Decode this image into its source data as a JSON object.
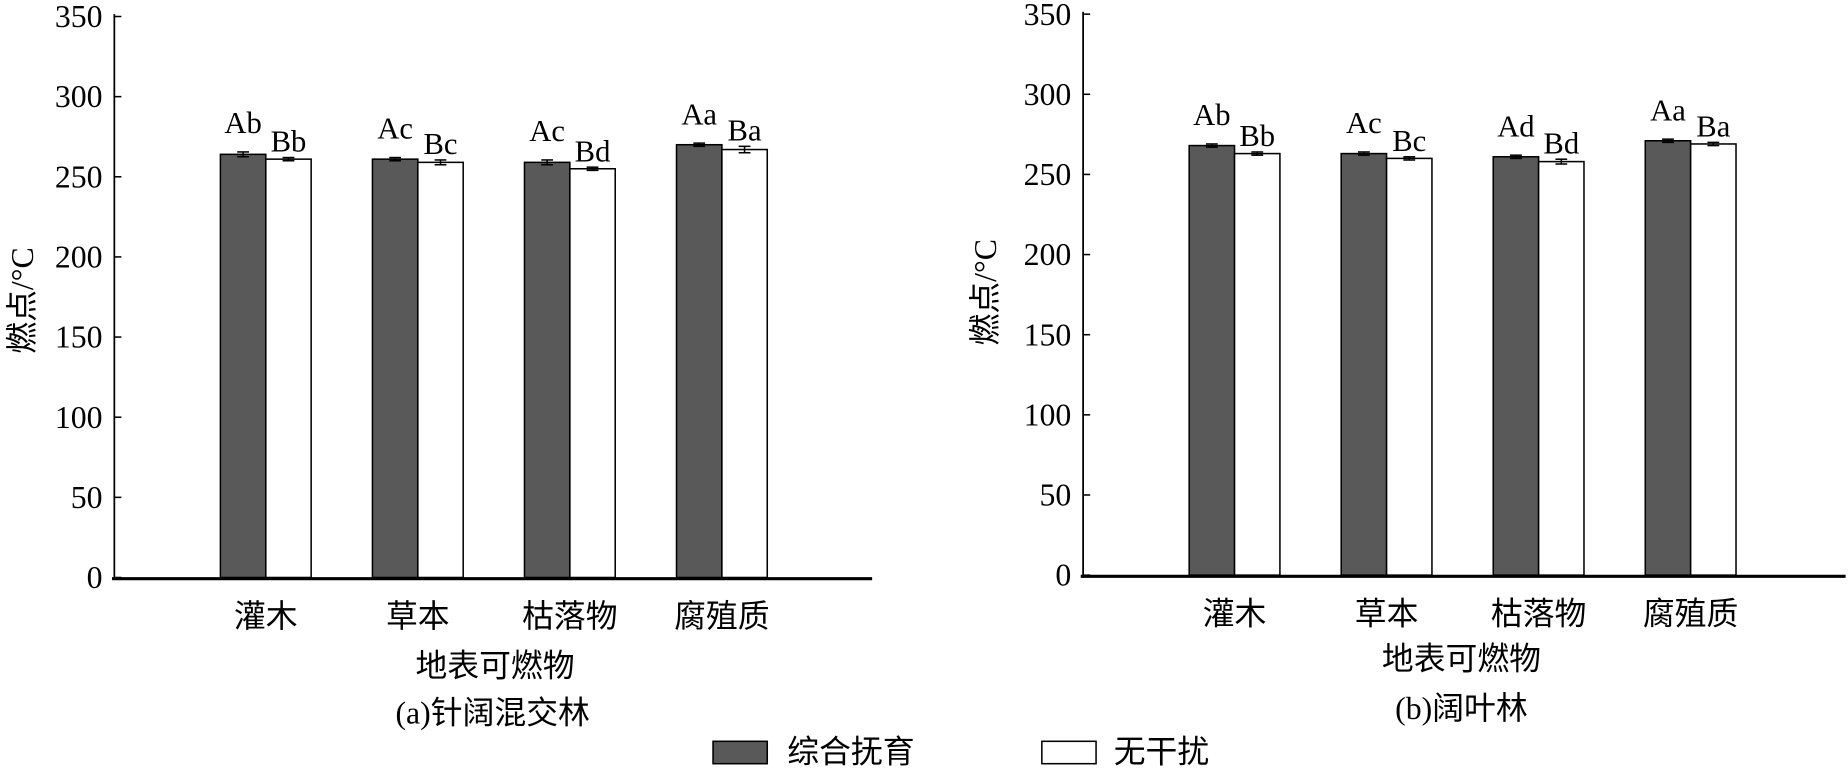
{
  "chart_data": [
    {
      "type": "bar",
      "caption": "(a)针阔混交林",
      "xlabel": "地表可燃物",
      "ylabel": "燃点/°C",
      "categories": [
        "灌木",
        "草本",
        "枯落物",
        "腐殖质"
      ],
      "ylim": [
        0,
        350
      ],
      "yticks": [
        0,
        50,
        100,
        150,
        200,
        250,
        300,
        350
      ],
      "grid": false,
      "legend": "bottom",
      "series": [
        {
          "name": "综合抚育",
          "color": "#595959",
          "values": [
            264,
            261,
            259,
            270
          ],
          "errors": [
            1.5,
            1,
            1.5,
            1
          ],
          "labels": [
            "Ab",
            "Ac",
            "Ac",
            "Aa"
          ]
        },
        {
          "name": "无干扰",
          "color": "#ffffff",
          "values": [
            261,
            259,
            255,
            267
          ],
          "errors": [
            1,
            1.5,
            1,
            2
          ],
          "labels": [
            "Bb",
            "Bc",
            "Bd",
            "Ba"
          ]
        }
      ]
    },
    {
      "type": "bar",
      "caption": "(b)阔叶林",
      "xlabel": "地表可燃物",
      "ylabel": "燃点/°C",
      "categories": [
        "灌木",
        "草本",
        "枯落物",
        "腐殖质"
      ],
      "ylim": [
        0,
        350
      ],
      "yticks": [
        0,
        50,
        100,
        150,
        200,
        250,
        300,
        350
      ],
      "grid": false,
      "legend": "bottom",
      "series": [
        {
          "name": "综合抚育",
          "color": "#595959",
          "values": [
            268,
            263,
            261,
            271
          ],
          "errors": [
            1,
            1,
            1,
            1
          ],
          "labels": [
            "Ab",
            "Ac",
            "Ad",
            "Aa"
          ]
        },
        {
          "name": "无干扰",
          "color": "#ffffff",
          "values": [
            263,
            260,
            258,
            269
          ],
          "errors": [
            1,
            1,
            1.5,
            1
          ],
          "labels": [
            "Bb",
            "Bc",
            "Bd",
            "Ba"
          ]
        }
      ]
    }
  ]
}
